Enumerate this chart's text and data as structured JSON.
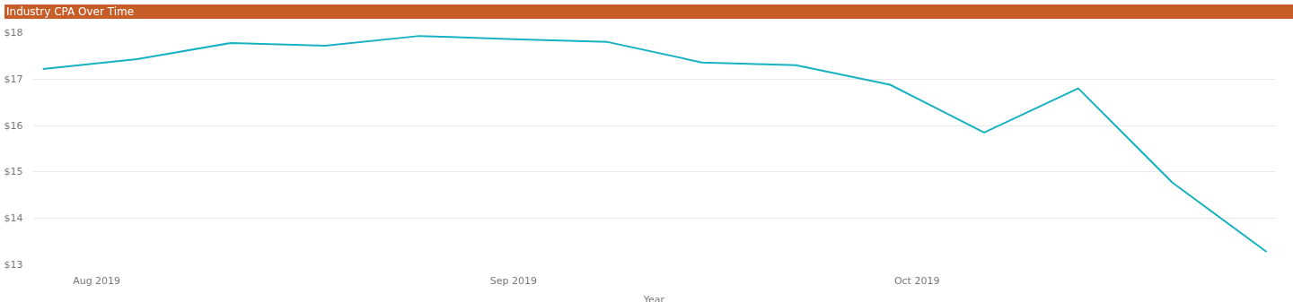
{
  "chart_data": {
    "type": "line",
    "title": "Industry CPA Over Time",
    "xlabel": "Year",
    "x": [
      "2019-07-28",
      "2019-08-04",
      "2019-08-11",
      "2019-08-18",
      "2019-08-25",
      "2019-09-01",
      "2019-09-08",
      "2019-09-15",
      "2019-09-22",
      "2019-09-29",
      "2019-10-06",
      "2019-10-13",
      "2019-10-20",
      "2019-10-27"
    ],
    "series": [
      {
        "color": "#17b2c2",
        "values": [
          17.22,
          17.43,
          17.78,
          17.72,
          17.93,
          17.86,
          17.8,
          17.36,
          17.3,
          16.88,
          15.85,
          16.8,
          14.77,
          13.28
        ]
      }
    ],
    "xlim": [
      "2019-07-27T06:00",
      "2019-10-27T16:00"
    ],
    "xticks": [
      {
        "value": "2019-08-01",
        "label": "Aug 2019"
      },
      {
        "value": "2019-09-01",
        "label": "Sep 2019"
      },
      {
        "value": "2019-10-01",
        "label": "Oct 2019"
      }
    ],
    "ylim": [
      13,
      18
    ],
    "yticks": [
      {
        "value": 13,
        "label": "$13"
      },
      {
        "value": 14,
        "label": "$14"
      },
      {
        "value": 15,
        "label": "$15"
      },
      {
        "value": 16,
        "label": "$16"
      },
      {
        "value": 17,
        "label": "$17"
      },
      {
        "value": 18,
        "label": "$18"
      }
    ],
    "grid": "y",
    "marker": "none",
    "line_style": "solid"
  }
}
